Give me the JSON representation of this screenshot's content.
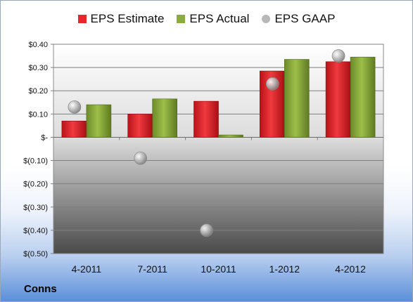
{
  "footer": {
    "company": "Conns"
  },
  "colors": {
    "estimate": "#e8262c",
    "actual": "#8aac3b",
    "gaap": "#b8b8b8"
  },
  "chart_data": {
    "type": "bar",
    "categories": [
      "4-2011",
      "7-2011",
      "10-2011",
      "1-2012",
      "4-2012"
    ],
    "series": [
      {
        "name": "EPS Estimate",
        "values": [
          0.07,
          0.1,
          0.155,
          0.285,
          0.325
        ]
      },
      {
        "name": "EPS Actual",
        "values": [
          0.14,
          0.165,
          0.01,
          0.335,
          0.345
        ]
      },
      {
        "name": "EPS GAAP",
        "type": "scatter",
        "values": [
          0.13,
          -0.09,
          -0.4,
          0.23,
          0.35
        ]
      }
    ],
    "ylim": [
      -0.5,
      0.4
    ],
    "yticks": [
      0.4,
      0.3,
      0.2,
      0.1,
      0,
      -0.1,
      -0.2,
      -0.3,
      -0.4,
      -0.5
    ],
    "ytick_labels": [
      "$0.40",
      "$0.30",
      "$0.20",
      "$0.10",
      "$-",
      "$(0.10)",
      "$(0.20)",
      "$(0.30)",
      "$(0.40)",
      "$(0.50)"
    ],
    "grid": true,
    "legend_position": "top"
  }
}
